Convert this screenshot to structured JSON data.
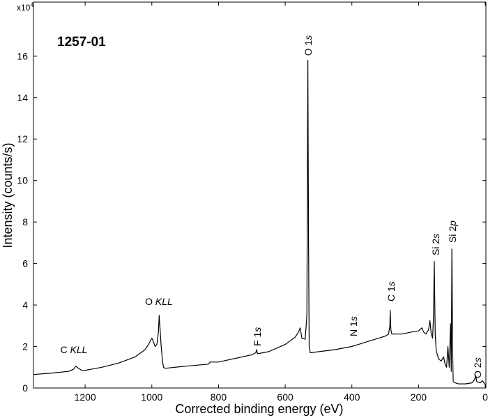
{
  "chart_data": {
    "type": "line",
    "title": "1257-01",
    "x_label": "Corrected binding energy (eV)",
    "y_label": "Intensity (counts/s)",
    "y_scale_label": "x10",
    "y_scale_exponent": "4",
    "color": "#000000",
    "xlim": [
      1355,
      -2
    ],
    "ylim": [
      0,
      18.6
    ],
    "xticks": [
      1200,
      1000,
      800,
      600,
      400,
      200,
      0
    ],
    "yticks": [
      0,
      2,
      4,
      6,
      8,
      10,
      12,
      14,
      16
    ],
    "x": [
      1355,
      1300,
      1250,
      1235,
      1228,
      1220,
      1210,
      1200,
      1150,
      1100,
      1050,
      1020,
      1010,
      1000,
      997,
      990,
      985,
      980,
      978,
      975,
      972,
      968,
      965,
      960,
      900,
      830,
      825,
      800,
      700,
      688,
      686,
      683,
      650,
      600,
      570,
      560,
      555,
      550,
      540,
      535,
      532,
      530,
      528,
      525,
      500,
      450,
      400,
      350,
      300,
      290,
      286,
      285,
      283,
      280,
      250,
      220,
      200,
      190,
      185,
      178,
      170,
      166,
      162,
      158,
      155,
      153,
      150,
      147,
      140,
      132,
      125,
      120,
      116,
      112,
      108,
      104,
      102,
      100,
      98,
      96,
      90,
      80,
      60,
      40,
      32,
      29,
      25,
      15,
      8,
      0
    ],
    "y": [
      0.65,
      0.72,
      0.8,
      0.9,
      1.05,
      0.95,
      0.85,
      0.85,
      1.0,
      1.2,
      1.5,
      1.85,
      2.1,
      2.4,
      2.3,
      2.0,
      2.1,
      2.7,
      3.5,
      2.8,
      2.0,
      1.3,
      1.0,
      0.95,
      1.05,
      1.15,
      1.25,
      1.25,
      1.6,
      1.7,
      1.85,
      1.65,
      1.75,
      2.1,
      2.45,
      2.7,
      2.9,
      2.4,
      2.35,
      3.5,
      15.8,
      7.0,
      2.0,
      1.7,
      1.75,
      1.85,
      2.0,
      2.25,
      2.5,
      2.6,
      3.0,
      3.75,
      2.8,
      2.6,
      2.6,
      2.7,
      2.75,
      2.9,
      2.7,
      2.6,
      2.8,
      3.25,
      2.6,
      2.4,
      3.5,
      6.1,
      2.6,
      1.8,
      1.4,
      1.3,
      1.5,
      1.1,
      1.0,
      2.0,
      1.0,
      3.1,
      0.8,
      6.7,
      2.0,
      0.3,
      0.25,
      0.2,
      0.2,
      0.25,
      0.4,
      0.6,
      0.3,
      0.25,
      0.35,
      0.15
    ],
    "annotations": [
      {
        "parts": [
          {
            "text": "C "
          },
          {
            "text": "KLL",
            "italic": true
          }
        ]
      },
      {
        "parts": [
          {
            "text": "O "
          },
          {
            "text": "KLL",
            "italic": true
          }
        ]
      },
      {
        "parts": [
          {
            "text": "F 1"
          },
          {
            "text": "s",
            "italic": true
          }
        ],
        "rotated": true
      },
      {
        "parts": [
          {
            "text": "O 1"
          },
          {
            "text": "s",
            "italic": true
          }
        ],
        "rotated": true
      },
      {
        "parts": [
          {
            "text": "N 1"
          },
          {
            "text": "s",
            "italic": true
          }
        ],
        "rotated": true
      },
      {
        "parts": [
          {
            "text": "C 1"
          },
          {
            "text": "s",
            "italic": true
          }
        ],
        "rotated": true
      },
      {
        "parts": [
          {
            "text": "Si 2"
          },
          {
            "text": "s",
            "italic": true
          }
        ],
        "rotated": true
      },
      {
        "parts": [
          {
            "text": "Si 2"
          },
          {
            "text": "p",
            "italic": true
          }
        ],
        "rotated": true
      },
      {
        "parts": [
          {
            "text": "O 2"
          },
          {
            "text": "s",
            "italic": true
          }
        ],
        "rotated": true
      }
    ]
  }
}
